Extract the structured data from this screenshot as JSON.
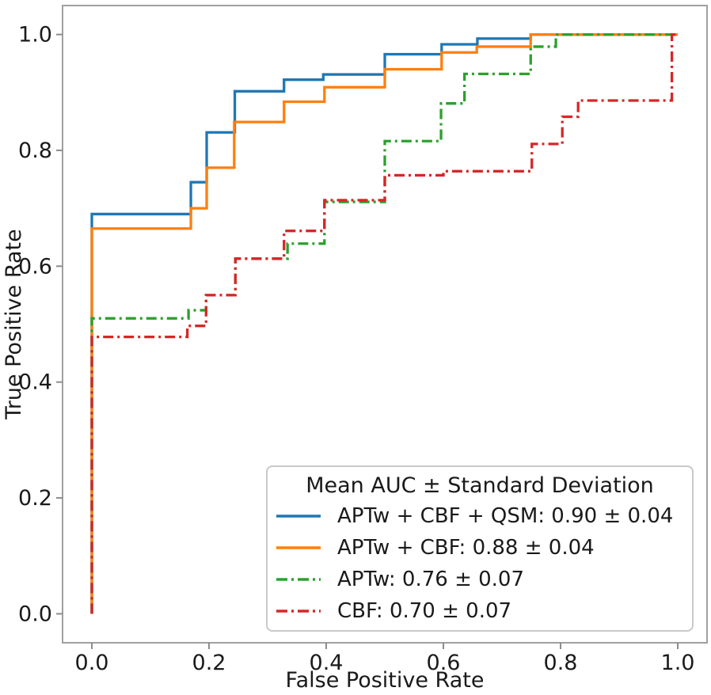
{
  "figure": {
    "background": "#ffffff",
    "text_color": "#1a1a1a",
    "spine_color": "#a0a0a0",
    "tick_color": "#8c8c8c"
  },
  "legend": {
    "title": "Mean AUC ± Standard Deviation",
    "entries": [
      {
        "label": "APTw + CBF + QSM: 0.90 ± 0.04",
        "color": "#1f77b4",
        "style": "solid"
      },
      {
        "label": "APTw + CBF: 0.88 ± 0.04",
        "color": "#ff7f0e",
        "style": "solid"
      },
      {
        "label": "APTw: 0.76 ± 0.07",
        "color": "#2ca02c",
        "style": "dashdot"
      },
      {
        "label": "CBF: 0.70 ± 0.07",
        "color": "#d62728",
        "style": "dashdot"
      }
    ]
  },
  "chart_data": {
    "type": "line",
    "subtype": "roc-step-curves",
    "title": "",
    "xlabel": "False Positive Rate",
    "ylabel": "True Positive Rate",
    "xlim": [
      -0.05,
      1.05
    ],
    "ylim": [
      -0.05,
      1.05
    ],
    "grid": false,
    "legend_position": "lower right",
    "x_ticks": [
      0.0,
      0.2,
      0.4,
      0.6,
      0.8,
      1.0
    ],
    "x_tick_labels": [
      "0.0",
      "0.2",
      "0.4",
      "0.6",
      "0.8",
      "1.0"
    ],
    "y_ticks": [
      0.0,
      0.2,
      0.4,
      0.6,
      0.8,
      1.0
    ],
    "y_tick_labels": [
      "0.0",
      "0.2",
      "0.4",
      "0.6",
      "0.8",
      "1.0"
    ],
    "series": [
      {
        "name": "APTw + CBF + QSM",
        "key": "aptw-cbf-qsm",
        "auc": "0.90 ± 0.04",
        "color": "#1f77b4",
        "style": "solid",
        "points": [
          [
            0,
            0
          ],
          [
            0,
            0.69
          ],
          [
            0.169,
            0.745
          ],
          [
            0.196,
            0.831
          ],
          [
            0.244,
            0.902
          ],
          [
            0.328,
            0.922
          ],
          [
            0.395,
            0.931
          ],
          [
            0.5,
            0.966
          ],
          [
            0.597,
            0.983
          ],
          [
            0.658,
            0.993
          ],
          [
            0.749,
            1.0
          ],
          [
            1.0,
            1.0
          ]
        ]
      },
      {
        "name": "APTw + CBF",
        "key": "aptw-cbf",
        "auc": "0.88 ± 0.04",
        "color": "#ff7f0e",
        "style": "solid",
        "points": [
          [
            0,
            0
          ],
          [
            0,
            0.665
          ],
          [
            0.169,
            0.7
          ],
          [
            0.196,
            0.77
          ],
          [
            0.243,
            0.849
          ],
          [
            0.328,
            0.884
          ],
          [
            0.397,
            0.909
          ],
          [
            0.5,
            0.94
          ],
          [
            0.597,
            0.969
          ],
          [
            0.657,
            0.979
          ],
          [
            0.749,
            1.0
          ],
          [
            1.0,
            1.0
          ]
        ]
      },
      {
        "name": "APTw",
        "key": "aptw",
        "auc": "0.76 ± 0.07",
        "color": "#2ca02c",
        "style": "dashdot",
        "points": [
          [
            0,
            0
          ],
          [
            0,
            0.51
          ],
          [
            0.165,
            0.524
          ],
          [
            0.195,
            0.55
          ],
          [
            0.245,
            0.613
          ],
          [
            0.334,
            0.639
          ],
          [
            0.397,
            0.711
          ],
          [
            0.5,
            0.816
          ],
          [
            0.596,
            0.881
          ],
          [
            0.636,
            0.932
          ],
          [
            0.749,
            0.979
          ],
          [
            0.792,
            1.0
          ],
          [
            1.0,
            1.0
          ]
        ]
      },
      {
        "name": "CBF",
        "key": "cbf",
        "auc": "0.70 ± 0.07",
        "color": "#d62728",
        "style": "dashdot",
        "points": [
          [
            0,
            0
          ],
          [
            0,
            0.478
          ],
          [
            0.163,
            0.497
          ],
          [
            0.195,
            0.55
          ],
          [
            0.245,
            0.613
          ],
          [
            0.328,
            0.661
          ],
          [
            0.397,
            0.714
          ],
          [
            0.5,
            0.757
          ],
          [
            0.6,
            0.764
          ],
          [
            0.751,
            0.811
          ],
          [
            0.803,
            0.858
          ],
          [
            0.83,
            0.886
          ],
          [
            0.99,
            1.0
          ],
          [
            1.0,
            1.0
          ]
        ]
      }
    ]
  }
}
